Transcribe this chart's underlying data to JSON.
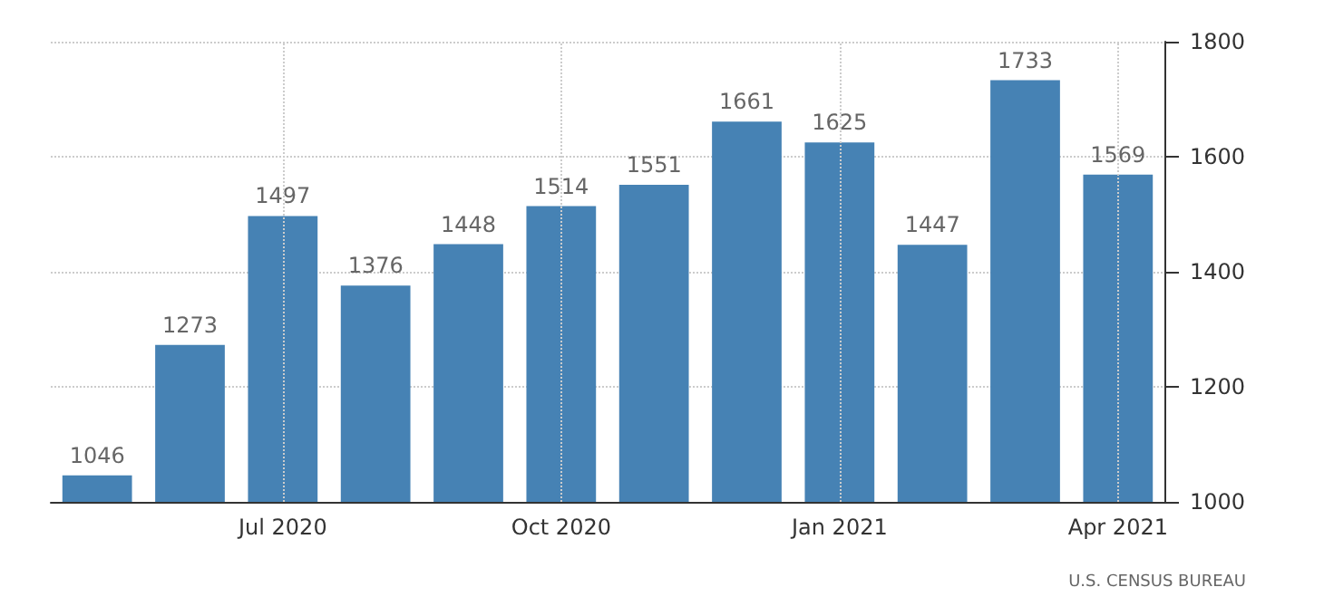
{
  "chart_data": {
    "type": "bar",
    "categories": [
      null,
      null,
      "Jul 2020",
      null,
      null,
      "Oct 2020",
      null,
      null,
      "Jan 2021",
      null,
      null,
      "Apr 2021"
    ],
    "values": [
      1046,
      1273,
      1497,
      1376,
      1448,
      1514,
      1551,
      1661,
      1625,
      1447,
      1733,
      1569
    ],
    "color": "#4682b4",
    "ylim": [
      1000,
      1800
    ],
    "yticks": [
      1000,
      1200,
      1400,
      1600,
      1800
    ],
    "grid": true,
    "data_labels": true,
    "annotations": [
      "U.S. CENSUS BUREAU"
    ]
  }
}
